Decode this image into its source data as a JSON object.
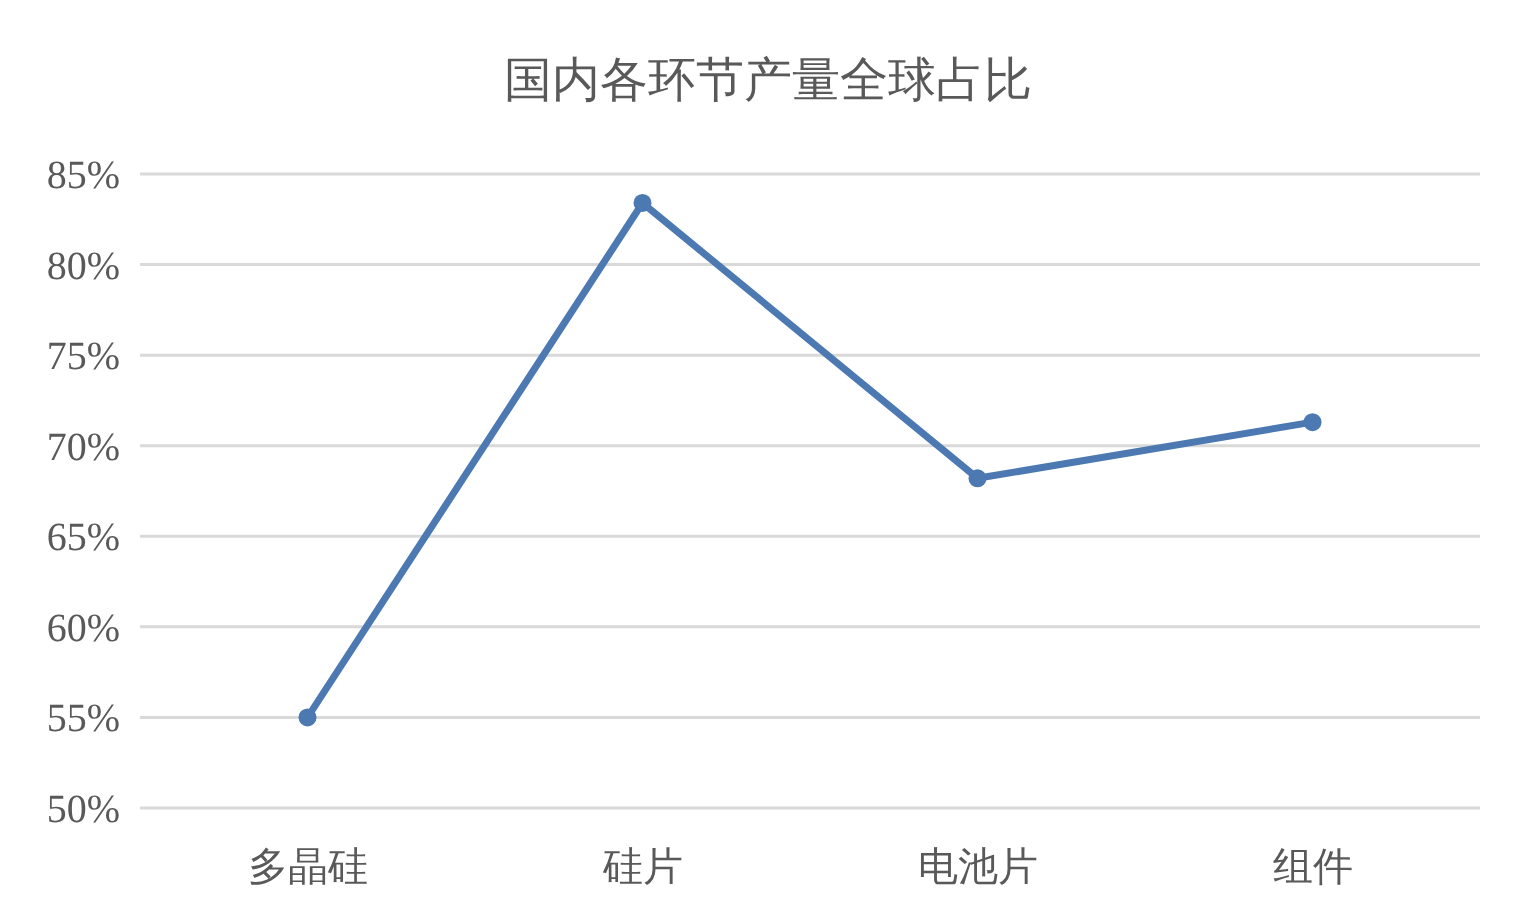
{
  "chart_data": {
    "type": "line",
    "title": "国内各环节产量全球占比",
    "categories": [
      "多晶硅",
      "硅片",
      "电池片",
      "组件"
    ],
    "series": [
      {
        "color": "#4d79b3",
        "values": [
          55,
          83.4,
          68.2,
          71.3
        ]
      }
    ],
    "ylim": [
      50,
      85
    ],
    "yticks": [
      {
        "value": 50,
        "label": "50%"
      },
      {
        "value": 55,
        "label": "55%"
      },
      {
        "value": 60,
        "label": "60%"
      },
      {
        "value": 65,
        "label": "65%"
      },
      {
        "value": 70,
        "label": "70%"
      },
      {
        "value": 75,
        "label": "75%"
      },
      {
        "value": 80,
        "label": "80%"
      },
      {
        "value": 85,
        "label": "85%"
      }
    ],
    "grid": "y",
    "marker": "circle",
    "line_style": "solid"
  }
}
